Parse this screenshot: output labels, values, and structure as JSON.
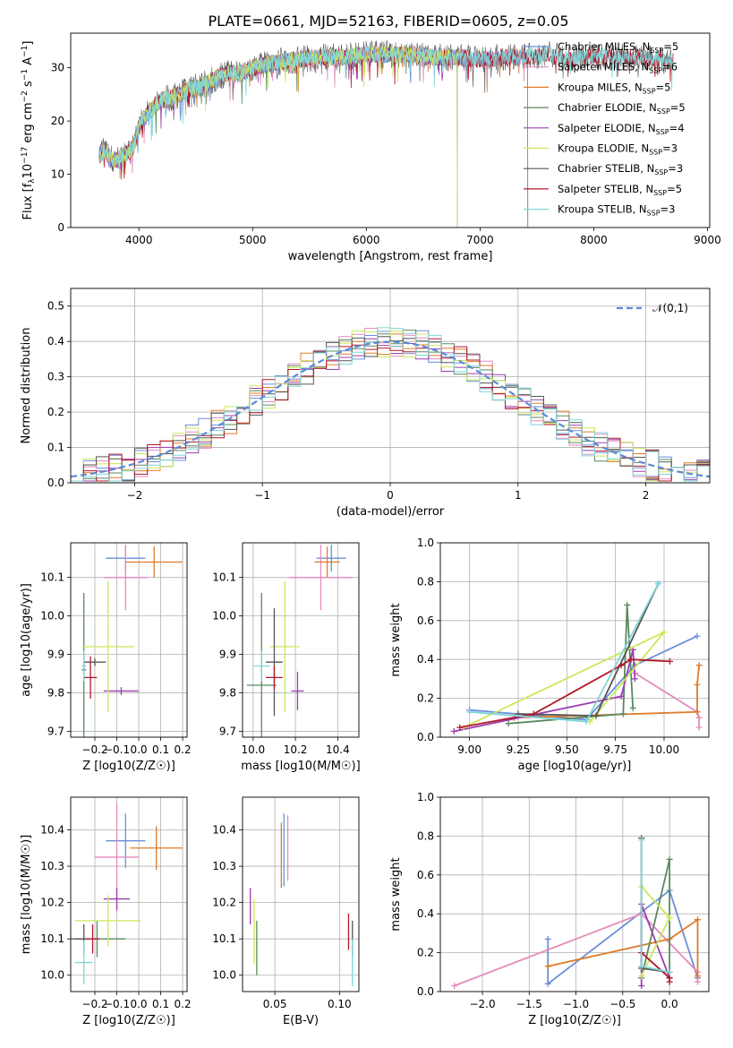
{
  "figure_title": "PLATE=0661, MJD=52163, FIBERID=0605, z=0.05",
  "models": [
    {
      "name": "Chabrier MILES, N$_{SSP}$=5",
      "label": "Chabrier MILES, N",
      "sub": "SSP",
      "tail": "=5",
      "color": "#6b8fd8"
    },
    {
      "name": "Salpeter MILES, N$_{SSP}$=6",
      "label": "Salpeter MILES, N",
      "sub": "SSP",
      "tail": "=6",
      "color": "#e58abb"
    },
    {
      "name": "Kroupa MILES, N$_{SSP}$=5",
      "label": "Kroupa MILES, N",
      "sub": "SSP",
      "tail": "=5",
      "color": "#e07b2a"
    },
    {
      "name": "Chabrier ELODIE, N$_{SSP}$=5",
      "label": "Chabrier ELODIE, N",
      "sub": "SSP",
      "tail": "=5",
      "color": "#5a8a5e"
    },
    {
      "name": "Salpeter ELODIE, N$_{SSP}$=4",
      "label": "Salpeter ELODIE, N",
      "sub": "SSP",
      "tail": "=4",
      "color": "#9b3fb0"
    },
    {
      "name": "Kroupa ELODIE, N$_{SSP}$=3",
      "label": "Kroupa ELODIE, N",
      "sub": "SSP",
      "tail": "=3",
      "color": "#cbe85a"
    },
    {
      "name": "Chabrier STELIB, N$_{SSP}$=3",
      "label": "Chabrier STELIB, N",
      "sub": "SSP",
      "tail": "=3",
      "color": "#555555"
    },
    {
      "name": "Salpeter STELIB, N$_{SSP}$=5",
      "label": "Salpeter STELIB, N",
      "sub": "SSP",
      "tail": "=5",
      "color": "#b2182b"
    },
    {
      "name": "Kroupa STELIB, N$_{SSP}$=3",
      "label": "Kroupa STELIB, N",
      "sub": "SSP",
      "tail": "=3",
      "color": "#7fd6d8"
    }
  ],
  "chart_data": [
    {
      "id": "spectrum",
      "type": "line",
      "xlabel": "wavelength [Angstrom, rest frame]",
      "ylabel": "Flux [f_λ 10^-17 erg cm^-2 s^-1 A^-1]",
      "ylabel_parts": [
        "Flux [f",
        "λ",
        "10",
        "−17",
        " erg cm",
        "−2",
        " s",
        "−1",
        " A",
        "−1",
        "]"
      ],
      "xlim": [
        3400,
        9020
      ],
      "ylim": [
        0,
        36.5
      ],
      "xticks": [
        4000,
        5000,
        6000,
        7000,
        8000,
        9000
      ],
      "yticks": [
        0,
        10,
        20,
        30
      ],
      "envelope": {
        "x": [
          3650,
          3700,
          3750,
          3800,
          3850,
          3900,
          3950,
          4000,
          4050,
          4100,
          4200,
          4300,
          4400,
          4500,
          4600,
          4700,
          4800,
          4900,
          5000,
          5200,
          5400,
          5600,
          5800,
          6000,
          6200,
          6400,
          6600,
          6800,
          7000,
          7200,
          7400,
          7600,
          7800,
          8000,
          8200,
          8400,
          8600,
          8800
        ],
        "y": [
          13.5,
          14.5,
          13.0,
          12.5,
          13.5,
          14.0,
          15.0,
          19.0,
          20.5,
          22.0,
          24.0,
          24.5,
          25.5,
          26.5,
          27.0,
          28.5,
          29.0,
          29.0,
          30.0,
          31.0,
          31.5,
          32.0,
          32.0,
          32.5,
          32.5,
          32.5,
          32.0,
          32.0,
          31.5,
          32.0,
          32.0,
          32.5,
          31.5,
          32.0,
          32.0,
          32.0,
          31.5,
          31.0
        ]
      },
      "model_coverage_max": [
        7420,
        7420,
        7420,
        6800,
        6800,
        6800,
        8700,
        8700,
        8700
      ]
    },
    {
      "id": "residuals",
      "type": "line",
      "xlabel": "(data-model)/error",
      "ylabel": "Normed distribution",
      "xlim": [
        -2.5,
        2.5
      ],
      "ylim": [
        0,
        0.55
      ],
      "xticks": [
        -2,
        -1,
        0,
        1,
        2
      ],
      "yticks": [
        0.0,
        0.1,
        0.2,
        0.3,
        0.4,
        0.5
      ],
      "reference_curve": {
        "name": "𝒩(0,1)",
        "mu": 0,
        "sigma": 1,
        "color": "#5b8bd6"
      },
      "bins": {
        "start": -2.5,
        "width": 0.1,
        "count": 50
      },
      "bin_jitter_amplitude": 0.045
    },
    {
      "id": "Z-vs-age",
      "type": "scatter",
      "xlabel": "Z [log10(Z/Z☉)]",
      "ylabel": "age  [log10(age/yr)]",
      "xlim": [
        -0.31,
        0.22
      ],
      "ylim": [
        9.685,
        10.19
      ],
      "xticks": [
        -0.2,
        -0.1,
        0.0,
        0.1,
        0.2
      ],
      "yticks": [
        9.7,
        9.8,
        9.9,
        10.0,
        10.1
      ],
      "points": [
        {
          "model": 0,
          "x": -0.06,
          "xerr": 0.09,
          "y": 10.15,
          "yerr": 0.035
        },
        {
          "model": 1,
          "x": -0.06,
          "xerr": 0.1,
          "y": 10.1,
          "yerr": 0.085
        },
        {
          "model": 2,
          "x": 0.07,
          "xerr": 0.13,
          "y": 10.14,
          "yerr": 0.04
        },
        {
          "model": 3,
          "x": -0.25,
          "xerr": 0.01,
          "y": 9.86,
          "yerr": 0.2
        },
        {
          "model": 4,
          "x": -0.08,
          "xerr": 0.08,
          "y": 9.805,
          "yerr": 0.01
        },
        {
          "model": 5,
          "x": -0.14,
          "xerr": 0.12,
          "y": 9.92,
          "yerr": 0.17
        },
        {
          "model": 6,
          "x": -0.2,
          "xerr": 0.05,
          "y": 9.88,
          "yerr": 0.01
        },
        {
          "model": 7,
          "x": -0.22,
          "xerr": 0.03,
          "y": 9.84,
          "yerr": 0.055
        },
        {
          "model": 8,
          "x": -0.25,
          "xerr": 0.01,
          "y": 9.87,
          "yerr": 0.04
        }
      ]
    },
    {
      "id": "mass-vs-age",
      "type": "scatter",
      "xlabel": "mass [log10(M/M☉)]",
      "ylabel": "",
      "xlim": [
        9.95,
        10.5
      ],
      "ylim": [
        9.685,
        10.19
      ],
      "xticks": [
        10.0,
        10.2,
        10.4
      ],
      "yticks": [
        9.7,
        9.8,
        9.9,
        10.0,
        10.1
      ],
      "points": [
        {
          "model": 0,
          "x": 10.37,
          "xerr": 0.07,
          "y": 10.15,
          "yerr": 0.035
        },
        {
          "model": 1,
          "x": 10.32,
          "xerr": 0.15,
          "y": 10.1,
          "yerr": 0.085
        },
        {
          "model": 2,
          "x": 10.35,
          "xerr": 0.06,
          "y": 10.14,
          "yerr": 0.04
        },
        {
          "model": 3,
          "x": 10.04,
          "xerr": 0.07,
          "y": 9.82,
          "yerr": 0.24
        },
        {
          "model": 4,
          "x": 10.21,
          "xerr": 0.03,
          "y": 9.805,
          "yerr": 0.05
        },
        {
          "model": 5,
          "x": 10.15,
          "xerr": 0.07,
          "y": 9.92,
          "yerr": 0.17
        },
        {
          "model": 6,
          "x": 10.1,
          "xerr": 0.04,
          "y": 9.88,
          "yerr": 0.14
        },
        {
          "model": 7,
          "x": 10.1,
          "xerr": 0.04,
          "y": 9.84,
          "yerr": 0.03
        },
        {
          "model": 8,
          "x": 10.04,
          "xerr": 0.04,
          "y": 9.87,
          "yerr": 0.04
        }
      ]
    },
    {
      "id": "age-vs-massweight",
      "type": "line",
      "xlabel": "age  [log10(age/yr)]",
      "ylabel": "mass weight",
      "xlim": [
        8.85,
        10.23
      ],
      "ylim": [
        0,
        1.0
      ],
      "xticks": [
        9.0,
        9.25,
        9.5,
        9.75,
        10.0
      ],
      "yticks": [
        0.0,
        0.2,
        0.4,
        0.6,
        0.8,
        1.0
      ],
      "series": [
        {
          "model": 0,
          "x": [
            9.0,
            9.6,
            9.85,
            10.17
          ],
          "y": [
            0.14,
            0.09,
            0.37,
            0.52
          ]
        },
        {
          "model": 1,
          "x": [
            9.85,
            10.17,
            10.18,
            10.18
          ],
          "y": [
            0.33,
            0.13,
            0.1,
            0.05
          ]
        },
        {
          "model": 2,
          "x": [
            9.23,
            10.17,
            10.17,
            10.18
          ],
          "y": [
            0.1,
            0.13,
            0.27,
            0.37
          ]
        },
        {
          "model": 3,
          "x": [
            9.2,
            9.79,
            9.81,
            9.84
          ],
          "y": [
            0.07,
            0.12,
            0.68,
            0.15
          ]
        },
        {
          "model": 4,
          "x": [
            8.92,
            9.78,
            9.84,
            9.85
          ],
          "y": [
            0.03,
            0.21,
            0.45,
            0.3
          ]
        },
        {
          "model": 5,
          "x": [
            8.97,
            10.0,
            9.62
          ],
          "y": [
            0.05,
            0.54,
            0.08
          ]
        },
        {
          "model": 6,
          "x": [
            9.25,
            9.65,
            9.97
          ],
          "y": [
            0.12,
            0.11,
            0.79
          ]
        },
        {
          "model": 7,
          "x": [
            8.95,
            9.33,
            9.78,
            9.83,
            10.03
          ],
          "y": [
            0.05,
            0.12,
            0.37,
            0.4,
            0.39
          ]
        },
        {
          "model": 8,
          "x": [
            9.0,
            9.6,
            9.97
          ],
          "y": [
            0.13,
            0.08,
            0.79
          ]
        }
      ]
    },
    {
      "id": "Z-vs-mass",
      "type": "scatter",
      "xlabel": "Z [log10(Z/Z☉)]",
      "ylabel": "mass [log10(M/M☉)]",
      "xlim": [
        -0.31,
        0.22
      ],
      "ylim": [
        9.955,
        10.49
      ],
      "xticks": [
        -0.2,
        -0.1,
        0.0,
        0.1,
        0.2
      ],
      "yticks": [
        10.0,
        10.1,
        10.2,
        10.3,
        10.4
      ],
      "points": [
        {
          "model": 0,
          "x": -0.06,
          "xerr": 0.09,
          "y": 10.37,
          "yerr": 0.075
        },
        {
          "model": 1,
          "x": -0.1,
          "xerr": 0.1,
          "y": 10.325,
          "yerr": 0.15
        },
        {
          "model": 2,
          "x": 0.08,
          "xerr": 0.12,
          "y": 10.35,
          "yerr": 0.06
        },
        {
          "model": 3,
          "x": -0.19,
          "xerr": 0.13,
          "y": 10.1,
          "yerr": 0.05
        },
        {
          "model": 4,
          "x": -0.1,
          "xerr": 0.06,
          "y": 10.21,
          "yerr": 0.03
        },
        {
          "model": 5,
          "x": -0.14,
          "xerr": 0.15,
          "y": 10.15,
          "yerr": 0.07
        },
        {
          "model": 6,
          "x": -0.25,
          "xerr": 0.05,
          "y": 10.1,
          "yerr": 0.04
        },
        {
          "model": 7,
          "x": -0.21,
          "xerr": 0.03,
          "y": 10.1,
          "yerr": 0.04
        },
        {
          "model": 8,
          "x": -0.25,
          "xerr": 0.04,
          "y": 10.035,
          "yerr": 0.06
        }
      ]
    },
    {
      "id": "ebv-vs-mass",
      "type": "scatter",
      "xlabel": "E(B-V)",
      "ylabel": "",
      "xlim": [
        0.025,
        0.115
      ],
      "ylim": [
        9.955,
        10.49
      ],
      "xticks": [
        0.05,
        0.1
      ],
      "yticks": [
        10.0,
        10.1,
        10.2,
        10.3,
        10.4
      ],
      "points": [
        {
          "model": 0,
          "x": 0.057,
          "xerr": 0.0,
          "y": 10.345,
          "yerr": 0.1
        },
        {
          "model": 1,
          "x": 0.06,
          "xerr": 0.0,
          "y": 10.35,
          "yerr": 0.09
        },
        {
          "model": 2,
          "x": 0.055,
          "xerr": 0.0,
          "y": 10.33,
          "yerr": 0.09
        },
        {
          "model": 3,
          "x": 0.036,
          "xerr": 0.0,
          "y": 10.075,
          "yerr": 0.075
        },
        {
          "model": 4,
          "x": 0.031,
          "xerr": 0.0,
          "y": 10.19,
          "yerr": 0.05
        },
        {
          "model": 5,
          "x": 0.034,
          "xerr": 0.0,
          "y": 10.12,
          "yerr": 0.09
        },
        {
          "model": 6,
          "x": 0.11,
          "xerr": 0.0,
          "y": 10.1,
          "yerr": 0.05
        },
        {
          "model": 7,
          "x": 0.107,
          "xerr": 0.0,
          "y": 10.12,
          "yerr": 0.05
        },
        {
          "model": 8,
          "x": 0.11,
          "xerr": 0.0,
          "y": 10.035,
          "yerr": 0.065
        }
      ]
    },
    {
      "id": "Z-vs-massweight",
      "type": "line",
      "xlabel": "Z [log10(Z/Z☉)]",
      "ylabel": "mass weight",
      "xlim": [
        -2.45,
        0.42
      ],
      "ylim": [
        0,
        1.0
      ],
      "xticks": [
        -2.0,
        -1.5,
        -1.0,
        -0.5,
        0.0
      ],
      "yticks": [
        0.0,
        0.2,
        0.4,
        0.6,
        0.8,
        1.0
      ],
      "series": [
        {
          "model": 0,
          "x": [
            -1.3,
            -1.3,
            0.0,
            0.3
          ],
          "y": [
            0.27,
            0.04,
            0.52,
            0.07
          ]
        },
        {
          "model": 1,
          "x": [
            -2.3,
            -0.3,
            0.3,
            0.3
          ],
          "y": [
            0.03,
            0.4,
            0.1,
            0.05
          ]
        },
        {
          "model": 2,
          "x": [
            -1.3,
            0.0,
            0.3,
            0.3
          ],
          "y": [
            0.13,
            0.27,
            0.37,
            0.08
          ]
        },
        {
          "model": 3,
          "x": [
            -0.3,
            0.0,
            0.0
          ],
          "y": [
            0.07,
            0.68,
            0.1
          ]
        },
        {
          "model": 4,
          "x": [
            -0.3,
            -0.3,
            0.0
          ],
          "y": [
            0.03,
            0.45,
            0.07
          ]
        },
        {
          "model": 5,
          "x": [
            -0.3,
            0.0,
            -0.3
          ],
          "y": [
            0.54,
            0.38,
            0.08
          ]
        },
        {
          "model": 6,
          "x": [
            -0.3,
            -0.3,
            0.0
          ],
          "y": [
            0.79,
            0.12,
            0.1
          ]
        },
        {
          "model": 7,
          "x": [
            -0.3,
            0.0,
            0.0
          ],
          "y": [
            0.2,
            0.07,
            0.05
          ]
        },
        {
          "model": 8,
          "x": [
            -0.3,
            -0.3,
            0.0
          ],
          "y": [
            0.78,
            0.13,
            0.1
          ]
        }
      ]
    }
  ]
}
